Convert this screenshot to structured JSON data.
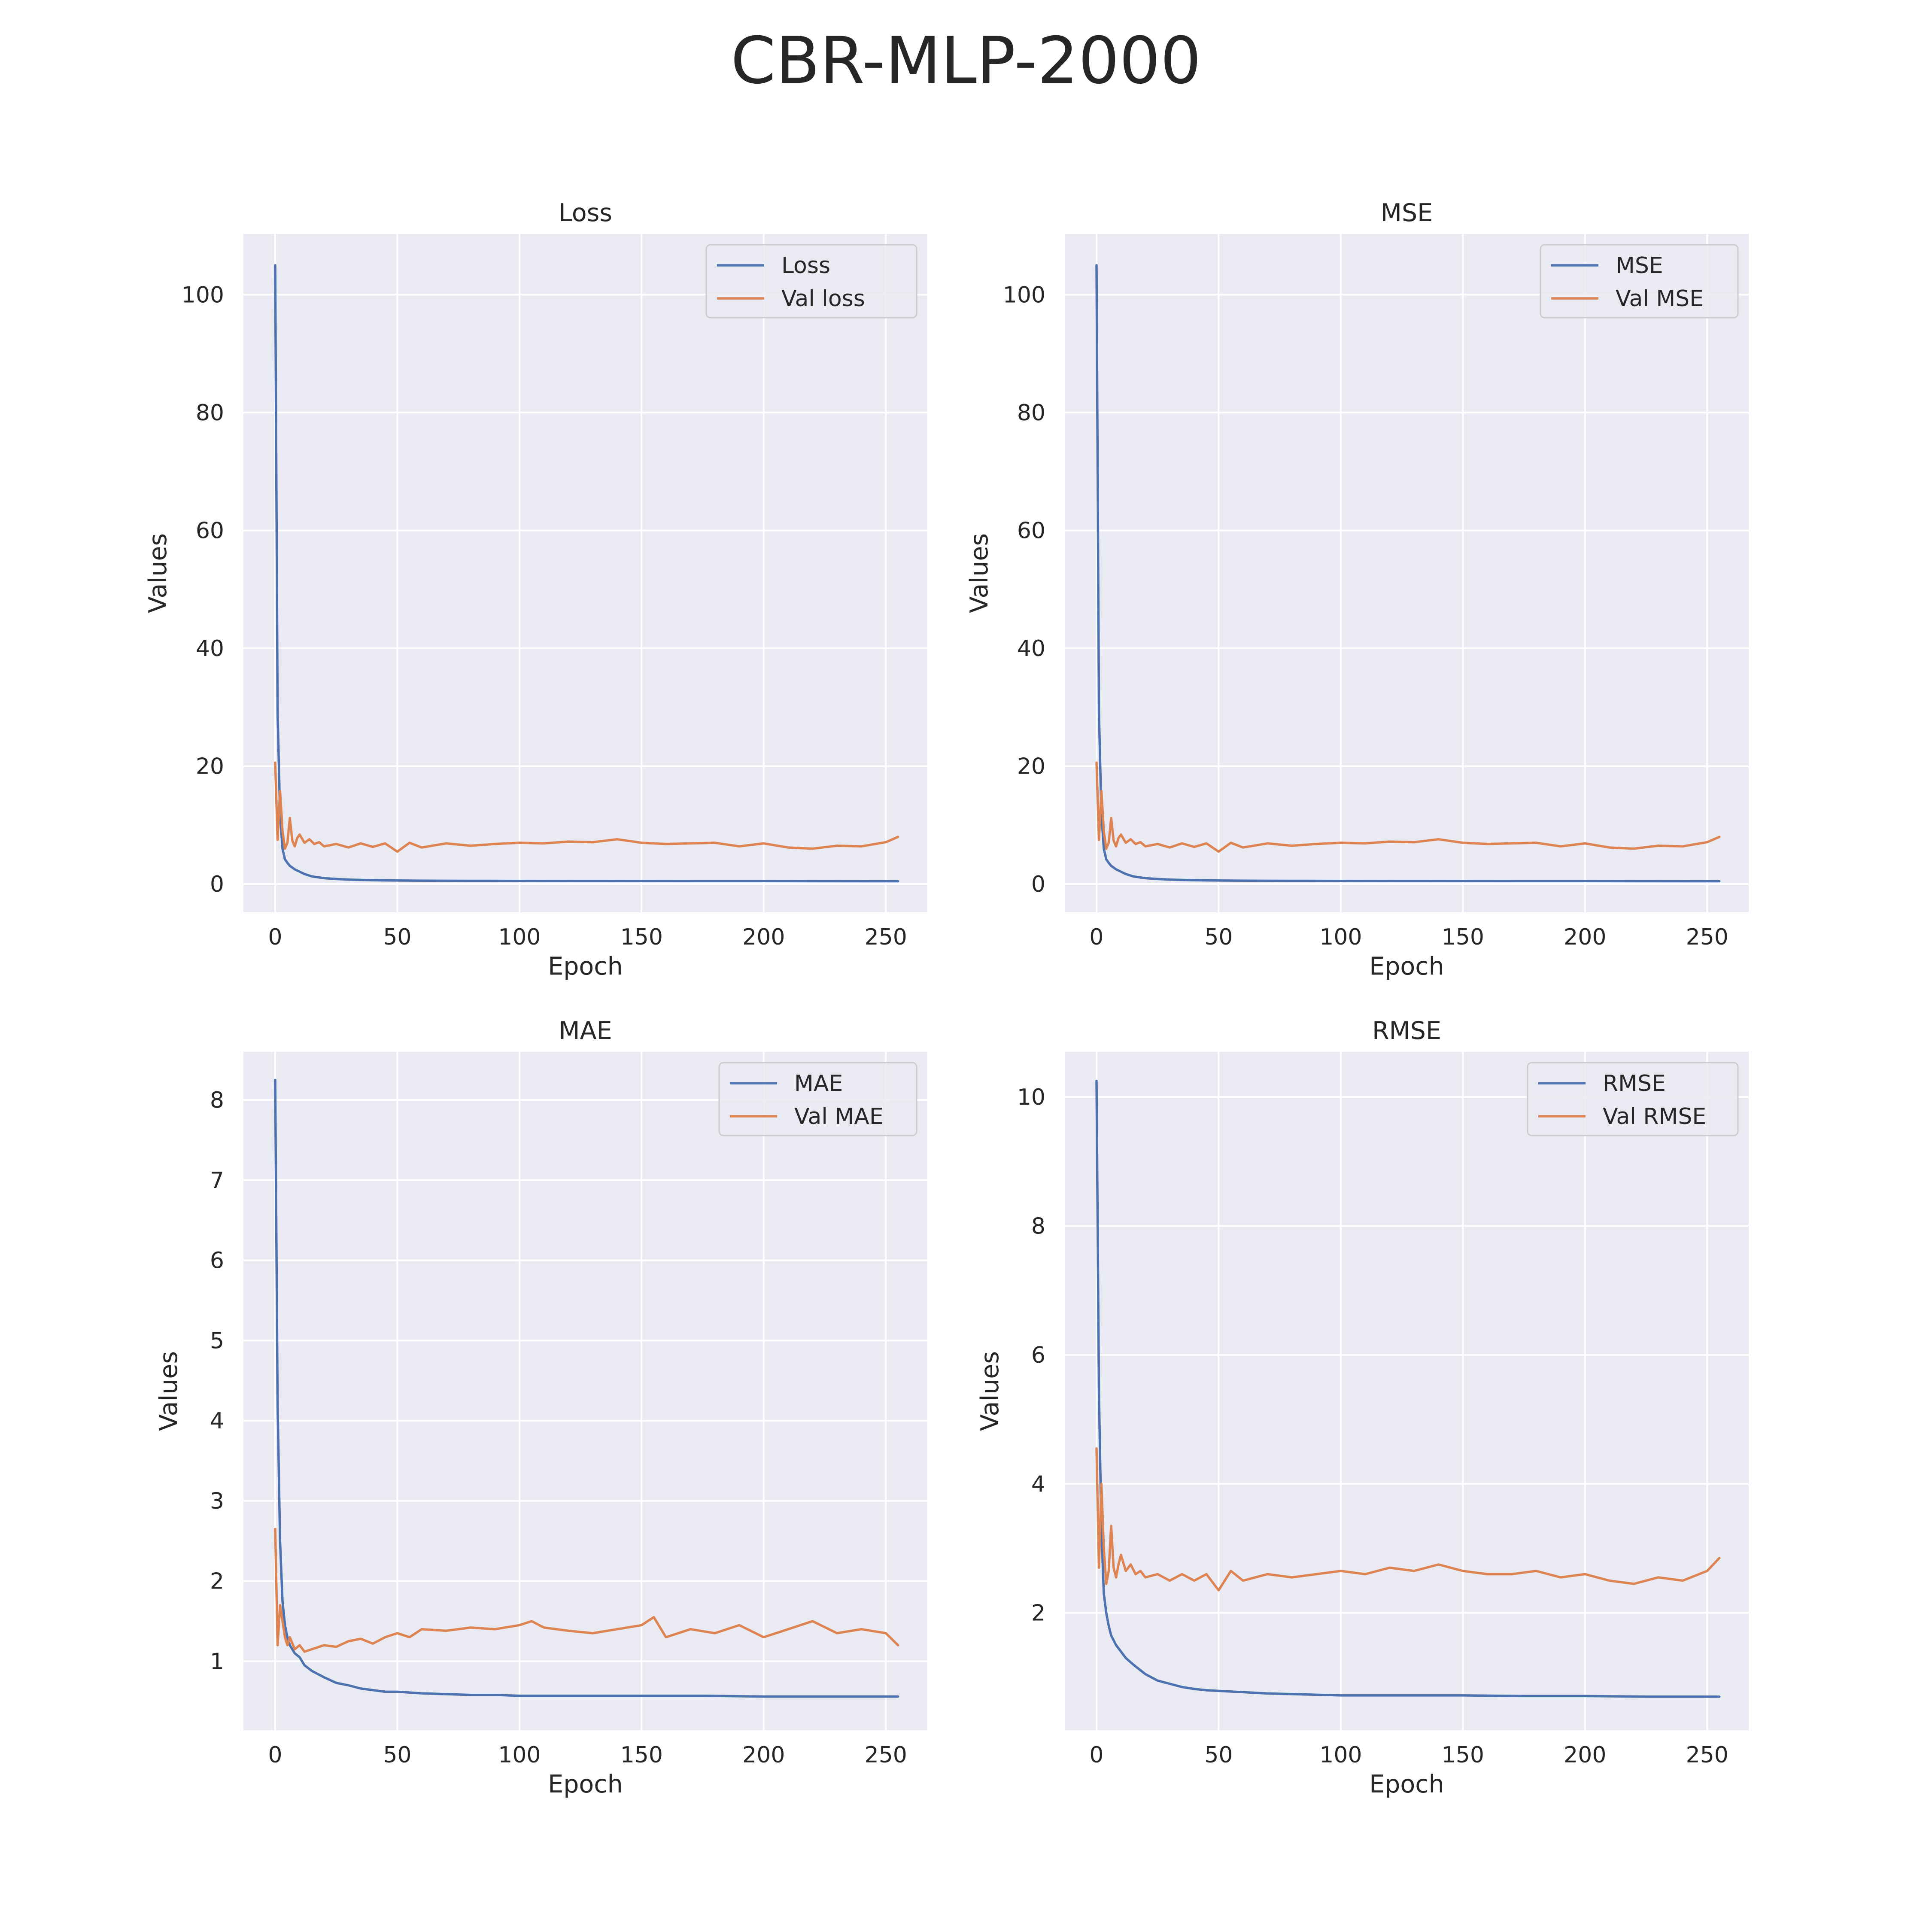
{
  "figure": {
    "title": "CBR-MLP-2000"
  },
  "colors": {
    "train": "#4c72b0",
    "val": "#dd8452",
    "axes_bg": "#eaeaf2",
    "grid": "#ffffff"
  },
  "chart_data": [
    {
      "type": "line",
      "title": "Loss",
      "xlabel": "Epoch",
      "ylabel": "Values",
      "xlim": [
        -13,
        267
      ],
      "ylim": [
        -4.8,
        110.3
      ],
      "xticks": [
        0,
        50,
        100,
        150,
        200,
        250
      ],
      "xtick_labels": [
        "0",
        "50",
        "100",
        "150",
        "200",
        "250"
      ],
      "yticks": [
        0,
        20,
        40,
        60,
        80,
        100
      ],
      "ytick_labels": [
        "0",
        "20",
        "40",
        "60",
        "80",
        "100"
      ],
      "legend_position": "upper right",
      "grid": true,
      "series": [
        {
          "name": "Loss",
          "color_role": "train",
          "x": [
            0,
            1,
            2,
            3,
            4,
            5,
            6,
            8,
            10,
            12,
            15,
            20,
            25,
            30,
            40,
            50,
            60,
            80,
            100,
            125,
            150,
            175,
            200,
            225,
            255
          ],
          "y": [
            105,
            29,
            12,
            6,
            4.2,
            3.6,
            3.1,
            2.5,
            2.1,
            1.7,
            1.3,
            1.0,
            0.85,
            0.75,
            0.65,
            0.6,
            0.57,
            0.55,
            0.53,
            0.52,
            0.51,
            0.5,
            0.5,
            0.49,
            0.48
          ]
        },
        {
          "name": "Val loss",
          "color_role": "val",
          "x": [
            0,
            1,
            2,
            3,
            4,
            5,
            6,
            7,
            8,
            9,
            10,
            12,
            14,
            16,
            18,
            20,
            25,
            30,
            35,
            40,
            45,
            50,
            55,
            60,
            70,
            80,
            90,
            100,
            110,
            120,
            130,
            140,
            150,
            160,
            170,
            180,
            190,
            200,
            210,
            220,
            230,
            240,
            250,
            255
          ],
          "y": [
            20.6,
            7.5,
            15.8,
            9.0,
            6.0,
            7.0,
            11.2,
            7.4,
            6.4,
            7.8,
            8.4,
            7.0,
            7.6,
            6.8,
            7.1,
            6.4,
            6.8,
            6.2,
            6.9,
            6.3,
            6.9,
            5.5,
            7.0,
            6.2,
            6.9,
            6.5,
            6.8,
            7.0,
            6.9,
            7.2,
            7.1,
            7.6,
            7.0,
            6.8,
            6.9,
            7.0,
            6.4,
            6.9,
            6.2,
            6.0,
            6.5,
            6.4,
            7.1,
            8.0
          ]
        }
      ]
    },
    {
      "type": "line",
      "title": "MSE",
      "xlabel": "Epoch",
      "ylabel": "Values",
      "xlim": [
        -13,
        267
      ],
      "ylim": [
        -4.8,
        110.3
      ],
      "xticks": [
        0,
        50,
        100,
        150,
        200,
        250
      ],
      "xtick_labels": [
        "0",
        "50",
        "100",
        "150",
        "200",
        "250"
      ],
      "yticks": [
        0,
        20,
        40,
        60,
        80,
        100
      ],
      "ytick_labels": [
        "0",
        "20",
        "40",
        "60",
        "80",
        "100"
      ],
      "legend_position": "upper right",
      "grid": true,
      "series": [
        {
          "name": "MSE",
          "color_role": "train",
          "x": [
            0,
            1,
            2,
            3,
            4,
            5,
            6,
            8,
            10,
            12,
            15,
            20,
            25,
            30,
            40,
            50,
            60,
            80,
            100,
            125,
            150,
            175,
            200,
            225,
            255
          ],
          "y": [
            105,
            29,
            12,
            6,
            4.2,
            3.6,
            3.1,
            2.5,
            2.1,
            1.7,
            1.3,
            1.0,
            0.85,
            0.75,
            0.65,
            0.6,
            0.57,
            0.55,
            0.53,
            0.52,
            0.51,
            0.5,
            0.5,
            0.49,
            0.48
          ]
        },
        {
          "name": "Val MSE",
          "color_role": "val",
          "x": [
            0,
            1,
            2,
            3,
            4,
            5,
            6,
            7,
            8,
            9,
            10,
            12,
            14,
            16,
            18,
            20,
            25,
            30,
            35,
            40,
            45,
            50,
            55,
            60,
            70,
            80,
            90,
            100,
            110,
            120,
            130,
            140,
            150,
            160,
            170,
            180,
            190,
            200,
            210,
            220,
            230,
            240,
            250,
            255
          ],
          "y": [
            20.6,
            7.5,
            15.8,
            9.0,
            6.0,
            7.0,
            11.2,
            7.4,
            6.4,
            7.8,
            8.4,
            7.0,
            7.6,
            6.8,
            7.1,
            6.4,
            6.8,
            6.2,
            6.9,
            6.3,
            6.9,
            5.5,
            7.0,
            6.2,
            6.9,
            6.5,
            6.8,
            7.0,
            6.9,
            7.2,
            7.1,
            7.6,
            7.0,
            6.8,
            6.9,
            7.0,
            6.4,
            6.9,
            6.2,
            6.0,
            6.5,
            6.4,
            7.1,
            8.0
          ]
        }
      ]
    },
    {
      "type": "line",
      "title": "MAE",
      "xlabel": "Epoch",
      "ylabel": "Values",
      "xlim": [
        -13,
        267
      ],
      "ylim": [
        0.14,
        8.6
      ],
      "xticks": [
        0,
        50,
        100,
        150,
        200,
        250
      ],
      "xtick_labels": [
        "0",
        "50",
        "100",
        "150",
        "200",
        "250"
      ],
      "yticks": [
        1,
        2,
        3,
        4,
        5,
        6,
        7,
        8
      ],
      "ytick_labels": [
        "1",
        "2",
        "3",
        "4",
        "5",
        "6",
        "7",
        "8"
      ],
      "legend_position": "upper right",
      "grid": true,
      "series": [
        {
          "name": "MAE",
          "color_role": "train",
          "x": [
            0,
            1,
            2,
            3,
            4,
            5,
            6,
            8,
            10,
            12,
            15,
            20,
            25,
            30,
            35,
            40,
            45,
            50,
            60,
            70,
            80,
            90,
            100,
            125,
            150,
            175,
            200,
            225,
            255
          ],
          "y": [
            8.25,
            4.2,
            2.5,
            1.75,
            1.45,
            1.3,
            1.2,
            1.1,
            1.05,
            0.95,
            0.88,
            0.8,
            0.73,
            0.7,
            0.66,
            0.64,
            0.62,
            0.62,
            0.6,
            0.59,
            0.58,
            0.58,
            0.57,
            0.57,
            0.57,
            0.57,
            0.56,
            0.56,
            0.56
          ]
        },
        {
          "name": "Val MAE",
          "color_role": "val",
          "x": [
            0,
            1,
            2,
            3,
            4,
            5,
            6,
            8,
            10,
            12,
            15,
            20,
            25,
            30,
            35,
            40,
            45,
            50,
            55,
            60,
            70,
            80,
            90,
            100,
            105,
            110,
            120,
            130,
            140,
            150,
            155,
            160,
            170,
            180,
            190,
            200,
            210,
            220,
            230,
            240,
            250,
            255
          ],
          "y": [
            2.65,
            1.2,
            1.7,
            1.5,
            1.3,
            1.2,
            1.3,
            1.15,
            1.2,
            1.12,
            1.15,
            1.2,
            1.18,
            1.25,
            1.28,
            1.22,
            1.3,
            1.35,
            1.3,
            1.4,
            1.38,
            1.42,
            1.4,
            1.45,
            1.5,
            1.42,
            1.38,
            1.35,
            1.4,
            1.45,
            1.55,
            1.3,
            1.4,
            1.35,
            1.45,
            1.3,
            1.4,
            1.5,
            1.35,
            1.4,
            1.35,
            1.2
          ]
        }
      ]
    },
    {
      "type": "line",
      "title": "RMSE",
      "xlabel": "Epoch",
      "ylabel": "Values",
      "xlim": [
        -13,
        267
      ],
      "ylim": [
        0.18,
        10.7
      ],
      "xticks": [
        0,
        50,
        100,
        150,
        200,
        250
      ],
      "xtick_labels": [
        "0",
        "50",
        "100",
        "150",
        "200",
        "250"
      ],
      "yticks": [
        2,
        4,
        6,
        8,
        10
      ],
      "ytick_labels": [
        "2",
        "4",
        "6",
        "8",
        "10"
      ],
      "legend_position": "upper right",
      "grid": true,
      "series": [
        {
          "name": "RMSE",
          "color_role": "train",
          "x": [
            0,
            1,
            2,
            3,
            4,
            5,
            6,
            8,
            10,
            12,
            15,
            20,
            25,
            30,
            35,
            40,
            45,
            50,
            60,
            70,
            80,
            90,
            100,
            125,
            150,
            175,
            200,
            225,
            255
          ],
          "y": [
            10.25,
            5.4,
            3.3,
            2.3,
            2.0,
            1.8,
            1.65,
            1.5,
            1.4,
            1.3,
            1.2,
            1.05,
            0.95,
            0.9,
            0.85,
            0.82,
            0.8,
            0.79,
            0.77,
            0.75,
            0.74,
            0.73,
            0.72,
            0.72,
            0.72,
            0.71,
            0.71,
            0.7,
            0.7
          ]
        },
        {
          "name": "Val RMSE",
          "color_role": "val",
          "x": [
            0,
            1,
            2,
            3,
            4,
            5,
            6,
            7,
            8,
            9,
            10,
            12,
            14,
            16,
            18,
            20,
            25,
            30,
            35,
            40,
            45,
            50,
            55,
            60,
            70,
            80,
            90,
            100,
            110,
            120,
            130,
            140,
            150,
            160,
            170,
            180,
            190,
            200,
            210,
            220,
            230,
            240,
            250,
            255
          ],
          "y": [
            4.55,
            2.7,
            4.0,
            3.0,
            2.45,
            2.65,
            3.35,
            2.7,
            2.55,
            2.75,
            2.9,
            2.65,
            2.75,
            2.6,
            2.65,
            2.55,
            2.6,
            2.5,
            2.6,
            2.5,
            2.6,
            2.35,
            2.65,
            2.5,
            2.6,
            2.55,
            2.6,
            2.65,
            2.6,
            2.7,
            2.65,
            2.75,
            2.65,
            2.6,
            2.6,
            2.65,
            2.55,
            2.6,
            2.5,
            2.45,
            2.55,
            2.5,
            2.65,
            2.85
          ]
        }
      ]
    }
  ]
}
